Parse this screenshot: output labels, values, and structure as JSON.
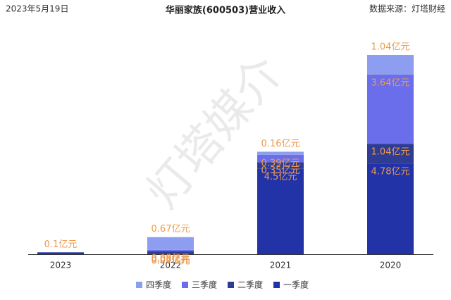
{
  "chart_data": {
    "type": "stacked-bar",
    "title": "华丽家族(600503)营业收入",
    "date": "2023年5月19日",
    "source": "数据来源：灯塔财经",
    "watermark": "灯塔媒介",
    "categories": [
      "2023",
      "2022",
      "2021",
      "2020"
    ],
    "series": [
      {
        "name": "一季度",
        "color": "#2233a8",
        "values": [
          0.1,
          0.07,
          4.5,
          4.78
        ],
        "value_labels": [
          "0.1亿元",
          "0.07亿元",
          "4.5亿元",
          "4.78亿元"
        ]
      },
      {
        "name": "二季度",
        "color": "#2e3c94",
        "values": [
          null,
          0.08,
          0.35,
          1.04
        ],
        "value_labels": [
          null,
          "0.08亿元",
          "0.35亿元",
          "1.04亿元"
        ]
      },
      {
        "name": "三季度",
        "color": "#6b6eea",
        "values": [
          null,
          0.08,
          0.39,
          3.64
        ],
        "value_labels": [
          null,
          "0.08亿元",
          "0.39亿元",
          "3.64亿元"
        ]
      },
      {
        "name": "四季度",
        "color": "#8d9ef0",
        "values": [
          null,
          0.67,
          0.16,
          1.04
        ],
        "value_labels": [
          null,
          "0.67亿元",
          "0.16亿元",
          "1.04亿元"
        ]
      }
    ],
    "label_color": "#ee9a4d"
  }
}
